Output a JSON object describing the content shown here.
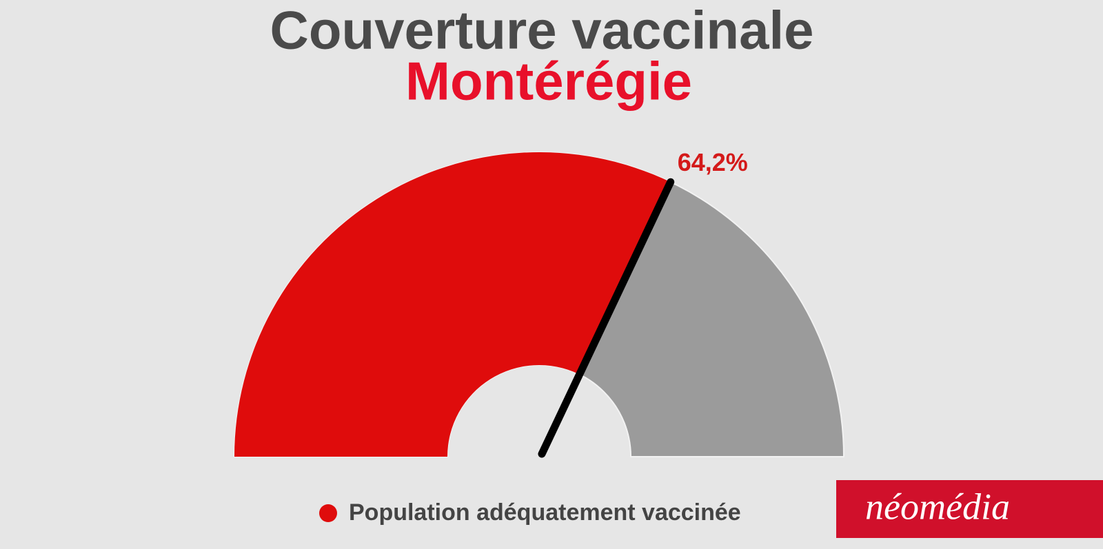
{
  "chart_data": {
    "type": "gauge",
    "title": "Couverture vaccinale",
    "subtitle": "Montérégie",
    "value": 64.2,
    "value_label": "64,2%",
    "ylim": [
      0,
      100
    ],
    "series": [
      {
        "name": "Population adéquatement vaccinée",
        "color": "#df0c0c"
      }
    ],
    "track_color": "#9b9b9b",
    "needle_color": "#000000"
  },
  "logo": "néomédia"
}
